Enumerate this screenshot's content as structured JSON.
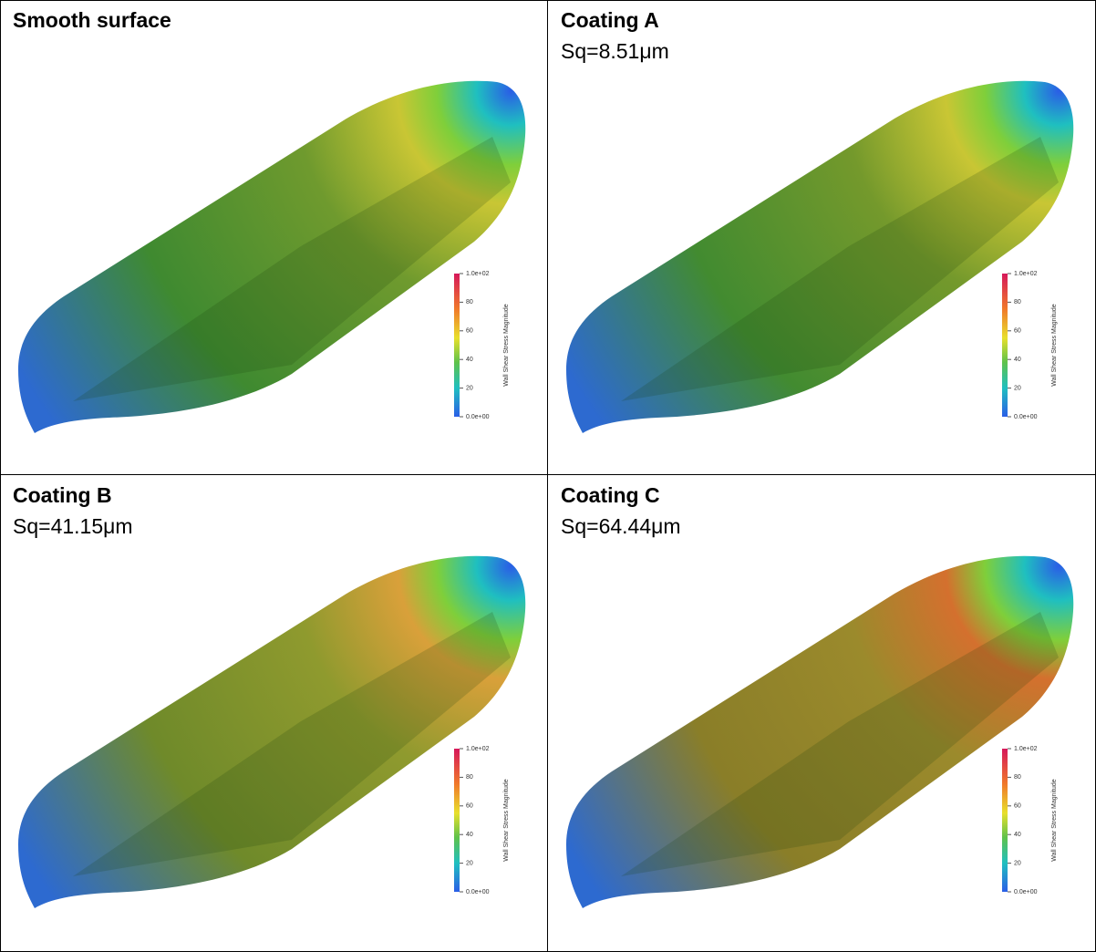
{
  "panels": [
    {
      "title": "Smooth surface",
      "colorbar": {
        "title": "Wall Shear Stress Magnitude",
        "labels": [
          "1.0e+02",
          "80",
          "60",
          "40",
          "20",
          "0.0e+00"
        ]
      }
    },
    {
      "title": "Coating A",
      "subtitle": "Sq=8.51μm",
      "colorbar": {
        "title": "Wall Shear Stress Magnitude",
        "labels": [
          "1.0e+02",
          "80",
          "60",
          "40",
          "20",
          "0.0e+00"
        ]
      }
    },
    {
      "title": "Coating B",
      "subtitle": "Sq=41.15μm",
      "colorbar": {
        "title": "Wall Shear Stress Magnitude",
        "labels": [
          "1.0e+02",
          "80",
          "60",
          "40",
          "20",
          "0.0e+00"
        ]
      }
    },
    {
      "title": "Coating C",
      "subtitle": "Sq=64.44μm",
      "colorbar": {
        "title": "Wall Shear Stress Magnitude",
        "labels": [
          "1.0e+02",
          "80",
          "60",
          "40",
          "20",
          "0.0e+00"
        ]
      }
    }
  ]
}
